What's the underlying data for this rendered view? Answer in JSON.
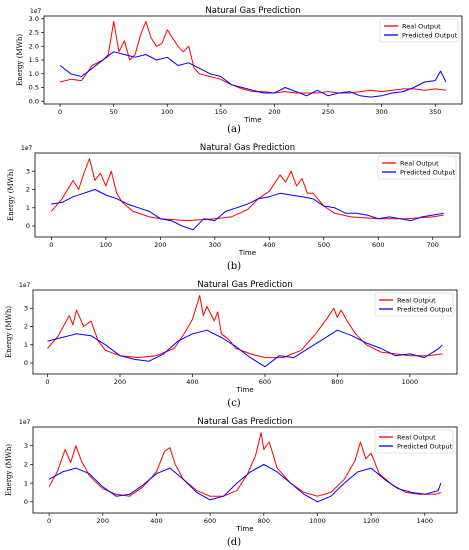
{
  "chart_data": [
    {
      "type": "line",
      "title": "Natural Gas Prediction",
      "xlabel": "Time",
      "ylabel": "Energy (MWh)",
      "y_exponent": "1e7",
      "caption": "(a)",
      "xlim": [
        -15,
        375
      ],
      "ylim": [
        -0.1,
        3.1
      ],
      "xticks": [
        0,
        50,
        100,
        150,
        200,
        250,
        300,
        350
      ],
      "yticks": [
        0.0,
        0.5,
        1.0,
        1.5,
        2.0,
        2.5,
        3.0
      ],
      "ytick_labels": [
        "0.0",
        "0.5",
        "1.0",
        "1.5",
        "2.0",
        "2.5",
        "3.0"
      ],
      "legend": "top-right",
      "series": [
        {
          "name": "Real Output",
          "color": "#ff0000",
          "x": [
            0,
            10,
            20,
            30,
            40,
            45,
            50,
            55,
            60,
            65,
            70,
            75,
            80,
            85,
            90,
            95,
            100,
            105,
            110,
            115,
            120,
            125,
            130,
            140,
            150,
            160,
            170,
            180,
            190,
            200,
            210,
            220,
            230,
            240,
            250,
            260,
            270,
            280,
            290,
            300,
            310,
            320,
            330,
            340,
            350,
            360
          ],
          "y": [
            0.7,
            0.8,
            0.75,
            1.3,
            1.5,
            1.7,
            2.9,
            1.8,
            2.2,
            1.5,
            1.7,
            2.4,
            2.9,
            2.3,
            2.0,
            2.1,
            2.6,
            2.3,
            2.0,
            1.8,
            2.0,
            1.2,
            1.0,
            0.9,
            0.8,
            0.6,
            0.45,
            0.35,
            0.35,
            0.3,
            0.35,
            0.3,
            0.3,
            0.3,
            0.35,
            0.3,
            0.3,
            0.35,
            0.4,
            0.35,
            0.4,
            0.45,
            0.45,
            0.4,
            0.45,
            0.4
          ]
        },
        {
          "name": "Predicted Output",
          "color": "#0000ff",
          "x": [
            0,
            10,
            20,
            30,
            40,
            50,
            60,
            70,
            80,
            90,
            100,
            110,
            120,
            130,
            140,
            150,
            160,
            170,
            180,
            190,
            200,
            210,
            220,
            230,
            240,
            250,
            260,
            270,
            280,
            290,
            300,
            310,
            320,
            330,
            340,
            350,
            355,
            360
          ],
          "y": [
            1.3,
            1.0,
            0.9,
            1.2,
            1.5,
            1.8,
            1.7,
            1.6,
            1.7,
            1.5,
            1.6,
            1.3,
            1.4,
            1.2,
            1.0,
            0.9,
            0.6,
            0.5,
            0.4,
            0.3,
            0.3,
            0.5,
            0.35,
            0.2,
            0.4,
            0.2,
            0.3,
            0.35,
            0.2,
            0.15,
            0.2,
            0.3,
            0.35,
            0.5,
            0.7,
            0.75,
            1.1,
            0.7
          ]
        }
      ]
    },
    {
      "type": "line",
      "title": "Natural Gas Prediction",
      "xlabel": "Time",
      "ylabel": "Energy (MWh)",
      "y_exponent": "1e7",
      "caption": "(b)",
      "xlim": [
        -30,
        750
      ],
      "ylim": [
        -0.6,
        4
      ],
      "xticks": [
        0,
        100,
        200,
        300,
        400,
        500,
        600,
        700
      ],
      "yticks": [
        0,
        1,
        2,
        3
      ],
      "ytick_labels": [
        "0",
        "1",
        "2",
        "3"
      ],
      "legend": "top-right",
      "series": [
        {
          "name": "Real Output",
          "color": "#ff0000",
          "x": [
            0,
            20,
            40,
            50,
            60,
            70,
            80,
            90,
            100,
            110,
            120,
            130,
            150,
            180,
            200,
            250,
            300,
            330,
            360,
            380,
            400,
            420,
            430,
            440,
            450,
            460,
            470,
            480,
            500,
            520,
            550,
            600,
            650,
            700,
            720
          ],
          "y": [
            0.8,
            1.5,
            2.5,
            2.0,
            2.9,
            3.7,
            2.5,
            2.9,
            2.2,
            3.0,
            1.8,
            1.3,
            0.8,
            0.5,
            0.4,
            0.3,
            0.4,
            0.5,
            0.9,
            1.5,
            1.9,
            2.8,
            2.4,
            3.0,
            2.2,
            2.6,
            1.8,
            1.8,
            1.1,
            0.7,
            0.5,
            0.4,
            0.4,
            0.5,
            0.6
          ]
        },
        {
          "name": "Predicted Output",
          "color": "#0000ff",
          "x": [
            0,
            20,
            40,
            60,
            80,
            100,
            120,
            140,
            160,
            180,
            200,
            220,
            240,
            260,
            280,
            300,
            320,
            340,
            360,
            380,
            400,
            420,
            440,
            460,
            480,
            500,
            520,
            540,
            560,
            580,
            600,
            620,
            640,
            660,
            680,
            700,
            720
          ],
          "y": [
            1.2,
            1.3,
            1.6,
            1.8,
            2.0,
            1.7,
            1.5,
            1.2,
            1.0,
            0.8,
            0.4,
            0.3,
            0.0,
            -0.2,
            0.4,
            0.3,
            0.8,
            1.0,
            1.2,
            1.5,
            1.6,
            1.8,
            1.7,
            1.6,
            1.5,
            1.1,
            1.0,
            0.7,
            0.7,
            0.6,
            0.4,
            0.5,
            0.4,
            0.3,
            0.5,
            0.6,
            0.7
          ]
        }
      ]
    },
    {
      "type": "line",
      "title": "Natural Gas Prediction",
      "xlabel": "Time",
      "ylabel": "Energy (MWh)",
      "y_exponent": "1e7",
      "caption": "(c)",
      "xlim": [
        -40,
        1130
      ],
      "ylim": [
        -0.6,
        4
      ],
      "xticks": [
        0,
        200,
        400,
        600,
        800,
        1000
      ],
      "yticks": [
        0,
        1,
        2,
        3
      ],
      "ytick_labels": [
        "0",
        "1",
        "2",
        "3"
      ],
      "legend": "top-right",
      "series": [
        {
          "name": "Real Output",
          "color": "#ff0000",
          "x": [
            0,
            30,
            60,
            70,
            80,
            100,
            120,
            140,
            160,
            200,
            250,
            300,
            350,
            380,
            400,
            420,
            430,
            440,
            460,
            470,
            480,
            500,
            520,
            560,
            600,
            650,
            700,
            740,
            770,
            790,
            800,
            810,
            830,
            850,
            880,
            920,
            960,
            1000,
            1050,
            1090
          ],
          "y": [
            0.8,
            1.5,
            2.6,
            2.1,
            2.9,
            2.0,
            2.3,
            1.2,
            0.7,
            0.4,
            0.3,
            0.4,
            0.8,
            1.7,
            2.4,
            3.7,
            2.6,
            3.1,
            2.3,
            2.8,
            1.6,
            1.3,
            0.8,
            0.5,
            0.3,
            0.3,
            0.7,
            1.6,
            2.4,
            3.0,
            2.5,
            2.9,
            2.2,
            1.6,
            1.0,
            0.6,
            0.5,
            0.4,
            0.4,
            0.5
          ]
        },
        {
          "name": "Predicted Output",
          "color": "#0000ff",
          "x": [
            0,
            40,
            80,
            120,
            160,
            200,
            240,
            280,
            320,
            360,
            400,
            440,
            480,
            520,
            560,
            600,
            640,
            680,
            720,
            760,
            800,
            840,
            880,
            920,
            960,
            1000,
            1040,
            1080,
            1090
          ],
          "y": [
            1.2,
            1.4,
            1.6,
            1.5,
            1.0,
            0.4,
            0.2,
            0.1,
            0.5,
            1.2,
            1.6,
            1.8,
            1.4,
            0.9,
            0.3,
            -0.2,
            0.4,
            0.3,
            0.8,
            1.3,
            1.8,
            1.5,
            1.1,
            0.8,
            0.4,
            0.5,
            0.3,
            0.8,
            1.0
          ]
        }
      ]
    },
    {
      "type": "line",
      "title": "Natural Gas Prediction",
      "xlabel": "Time",
      "ylabel": "Energy (MWh)",
      "y_exponent": "1e7",
      "caption": "(d)",
      "xlim": [
        -60,
        1520
      ],
      "ylim": [
        -0.6,
        4
      ],
      "xticks": [
        0,
        200,
        400,
        600,
        800,
        1000,
        1200,
        1400
      ],
      "yticks": [
        0,
        1,
        2,
        3
      ],
      "ytick_labels": [
        "0",
        "1",
        "2",
        "3"
      ],
      "legend": "top-right",
      "series": [
        {
          "name": "Real Output",
          "color": "#ff0000",
          "x": [
            0,
            30,
            60,
            80,
            100,
            120,
            150,
            200,
            250,
            300,
            350,
            400,
            430,
            450,
            470,
            500,
            550,
            600,
            650,
            700,
            740,
            770,
            790,
            800,
            820,
            850,
            900,
            950,
            1000,
            1050,
            1100,
            1140,
            1160,
            1180,
            1200,
            1230,
            1280,
            1330,
            1380,
            1440,
            1460
          ],
          "y": [
            0.8,
            1.6,
            2.8,
            2.1,
            3.0,
            2.2,
            1.4,
            0.7,
            0.4,
            0.3,
            0.8,
            1.6,
            2.7,
            2.9,
            2.0,
            1.2,
            0.6,
            0.3,
            0.3,
            0.6,
            1.5,
            2.5,
            3.7,
            2.8,
            3.2,
            1.8,
            1.0,
            0.5,
            0.3,
            0.5,
            1.2,
            2.2,
            3.2,
            2.3,
            2.6,
            1.5,
            0.9,
            0.5,
            0.4,
            0.4,
            0.5
          ]
        },
        {
          "name": "Predicted Output",
          "color": "#0000ff",
          "x": [
            0,
            50,
            100,
            150,
            200,
            250,
            300,
            350,
            400,
            450,
            500,
            550,
            600,
            650,
            700,
            750,
            800,
            850,
            900,
            950,
            1000,
            1050,
            1100,
            1150,
            1200,
            1250,
            1300,
            1350,
            1400,
            1450,
            1460
          ],
          "y": [
            1.2,
            1.6,
            1.8,
            1.5,
            0.8,
            0.3,
            0.4,
            0.9,
            1.5,
            1.8,
            1.2,
            0.5,
            0.1,
            0.3,
            1.0,
            1.6,
            2.0,
            1.6,
            1.0,
            0.4,
            0.0,
            0.3,
            1.0,
            1.6,
            1.8,
            1.2,
            0.7,
            0.5,
            0.4,
            0.6,
            1.0
          ]
        }
      ]
    }
  ]
}
